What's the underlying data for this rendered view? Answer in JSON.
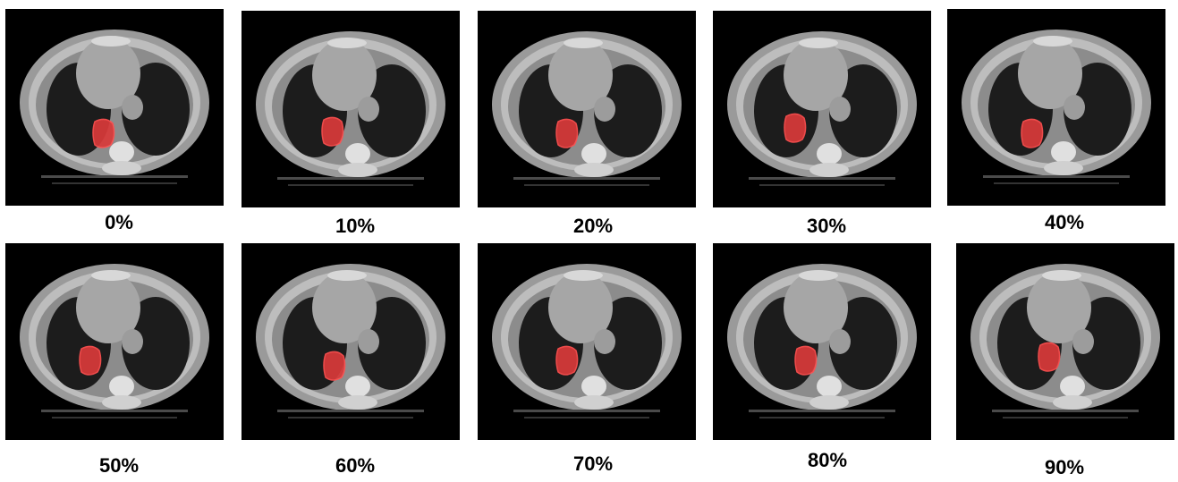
{
  "panels": [
    {
      "label": "0%"
    },
    {
      "label": "10%"
    },
    {
      "label": "20%"
    },
    {
      "label": "30%"
    },
    {
      "label": "40%"
    },
    {
      "label": "50%"
    },
    {
      "label": "60%"
    },
    {
      "label": "70%"
    },
    {
      "label": "80%"
    },
    {
      "label": "90%"
    }
  ]
}
